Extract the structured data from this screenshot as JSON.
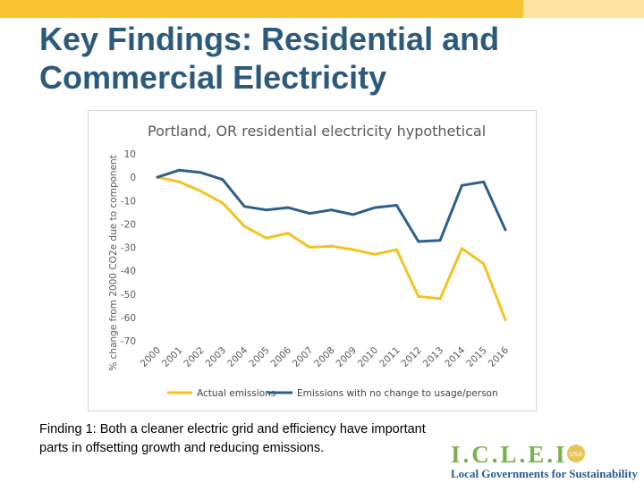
{
  "slide": {
    "title_line1": "Key Findings: Residential and",
    "title_line2": "Commercial Electricity",
    "finding": "Finding 1: Both a cleaner electric grid and efficiency have important parts in offsetting growth and reducing emissions."
  },
  "logo": {
    "wordmark": "I.C.L.E.I",
    "badge": "USA",
    "tagline": "Local Governments for Sustainability"
  },
  "colors": {
    "top_bar": "#f7c331",
    "top_bar_light": "#fbe3a1",
    "title": "#2c5a7a",
    "series_actual": "#f4c222",
    "series_no_change": "#2e5f8a",
    "logo_green": "#7bb04a",
    "logo_blue": "#2b5b8c",
    "logo_gold": "#e8c45c"
  },
  "chart_data": {
    "type": "line",
    "title": "Portland, OR residential electricity hypothetical",
    "xlabel": "",
    "ylabel": "% change from 2000 CO2e due to component",
    "x": [
      "2000",
      "2001",
      "2002",
      "2003",
      "2004",
      "2005",
      "2006",
      "2007",
      "2008",
      "2009",
      "2010",
      "2011",
      "2012",
      "2013",
      "2014",
      "2015",
      "2016"
    ],
    "ylim": [
      -70,
      10
    ],
    "yticks": [
      10,
      0,
      -10,
      -20,
      -30,
      -40,
      -50,
      -60,
      -70
    ],
    "series": [
      {
        "name": "Actual emissions",
        "color": "#f4c222",
        "values": [
          0,
          -2,
          -6,
          -11,
          -21,
          -26,
          -24,
          -30,
          -29.5,
          -31,
          -33,
          -31,
          -51,
          -52,
          -30.5,
          -37,
          -61
        ]
      },
      {
        "name": "Emissions with no change to usage/person",
        "color": "#2e5f8a",
        "values": [
          0,
          3,
          2,
          -1,
          -12.5,
          -14,
          -13,
          -15.5,
          -14,
          -16,
          -13,
          -12,
          -27.5,
          -27,
          -3.5,
          -2,
          -22.5
        ]
      }
    ],
    "grid": false,
    "legend": "bottom"
  }
}
